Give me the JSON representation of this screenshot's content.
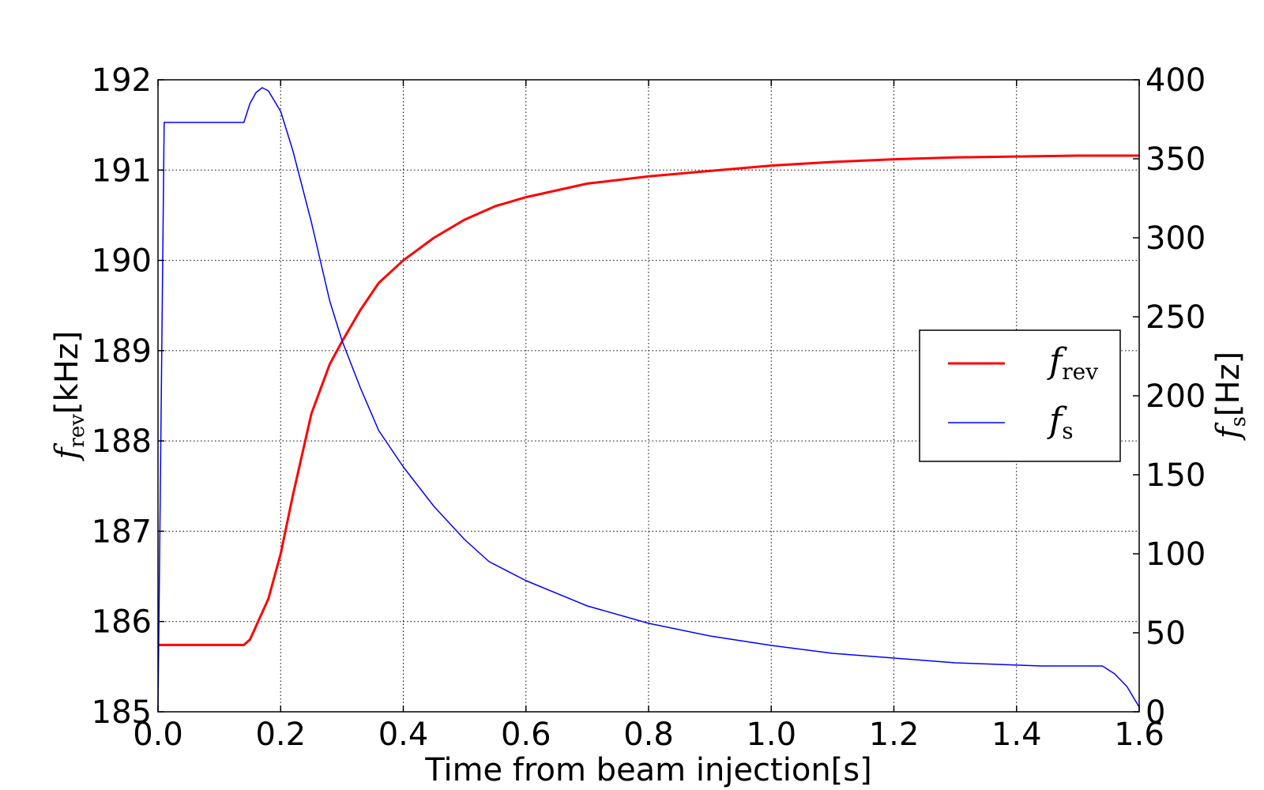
{
  "chart_data": {
    "type": "line",
    "title": "",
    "xlabel": "Time from beam injection[s]",
    "ylabel_left": {
      "symbol": "f",
      "sub": "rev",
      "unit": "[kHz]"
    },
    "ylabel_right": {
      "symbol": "f",
      "sub": "s",
      "unit": "[Hz]"
    },
    "xlim": [
      0,
      1.6
    ],
    "ylim_left": [
      185,
      192
    ],
    "ylim_right": [
      0,
      400
    ],
    "x_ticks": [
      "0.0",
      "0.2",
      "0.4",
      "0.6",
      "0.8",
      "1.0",
      "1.2",
      "1.4",
      "1.6"
    ],
    "y_left_ticks": [
      "185",
      "186",
      "187",
      "188",
      "189",
      "190",
      "191",
      "192"
    ],
    "y_right_ticks": [
      "0",
      "50",
      "100",
      "150",
      "200",
      "250",
      "300",
      "350",
      "400"
    ],
    "grid": true,
    "legend_position": "right",
    "series": [
      {
        "name": "f_rev",
        "legend_symbol": "f",
        "legend_sub": "rev",
        "axis": "left",
        "color": "#ff0000",
        "x": [
          0,
          0.14,
          0.15,
          0.16,
          0.18,
          0.2,
          0.22,
          0.25,
          0.28,
          0.3,
          0.33,
          0.36,
          0.4,
          0.45,
          0.5,
          0.55,
          0.6,
          0.7,
          0.8,
          0.9,
          1.0,
          1.1,
          1.2,
          1.3,
          1.4,
          1.5,
          1.6
        ],
        "y": [
          185.74,
          185.74,
          185.8,
          185.95,
          186.25,
          186.75,
          187.4,
          188.3,
          188.85,
          189.1,
          189.45,
          189.75,
          190.0,
          190.25,
          190.45,
          190.6,
          190.7,
          190.85,
          190.93,
          190.99,
          191.05,
          191.09,
          191.12,
          191.14,
          191.15,
          191.16,
          191.16
        ]
      },
      {
        "name": "f_s",
        "legend_symbol": "f",
        "legend_sub": "s",
        "axis": "right",
        "color": "#0000ff",
        "x": [
          0,
          0.01,
          0.14,
          0.15,
          0.16,
          0.17,
          0.18,
          0.2,
          0.22,
          0.25,
          0.28,
          0.3,
          0.33,
          0.36,
          0.4,
          0.45,
          0.5,
          0.54,
          0.6,
          0.7,
          0.8,
          0.9,
          1.0,
          1.1,
          1.2,
          1.3,
          1.44,
          1.54,
          1.56,
          1.58,
          1.6
        ],
        "y": [
          0,
          373,
          373,
          385,
          392,
          395,
          393,
          380,
          355,
          310,
          260,
          235,
          205,
          178,
          155,
          130,
          109,
          95,
          83,
          67,
          56,
          48,
          42,
          37,
          34,
          31,
          29,
          29,
          24,
          16,
          3
        ]
      }
    ]
  }
}
